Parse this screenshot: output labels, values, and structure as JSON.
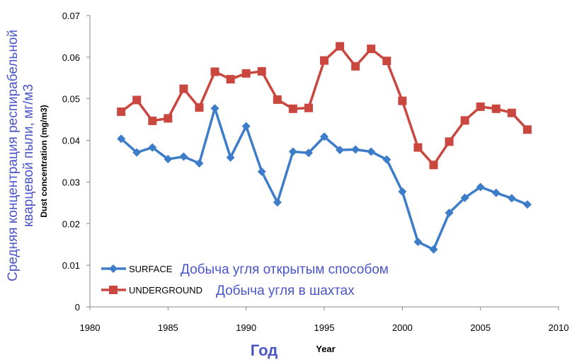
{
  "chart_data": {
    "type": "line",
    "xlabel": "Year",
    "xlabel_ru": "Год",
    "ylabel": "Dust concentration (mg/m3)",
    "ylabel_ru": "Средняя концентрация респирабельной кварцевой пыли, мг/м3",
    "xlim": [
      1980,
      2010
    ],
    "ylim": [
      0,
      0.07
    ],
    "x_ticks": [
      "1980",
      "1985",
      "1990",
      "1995",
      "2000",
      "2005",
      "2010"
    ],
    "y_ticks": [
      "0",
      "0.01",
      "0.02",
      "0.03",
      "0.04",
      "0.05",
      "0.06",
      "0.07"
    ],
    "grid": false,
    "legend_placement": "bottom-left",
    "x": [
      1982,
      1983,
      1984,
      1985,
      1986,
      1987,
      1988,
      1989,
      1990,
      1991,
      1992,
      1993,
      1994,
      1995,
      1996,
      1997,
      1998,
      1999,
      2000,
      2001,
      2002,
      2003,
      2004,
      2005,
      2006,
      2007,
      2008
    ],
    "series": [
      {
        "name": "SURFACE",
        "name_ru": "Добыча угля открытым способом",
        "color": "#3d7cc9",
        "marker": "diamond",
        "values": [
          0.0404,
          0.0371,
          0.0383,
          0.0355,
          0.0361,
          0.0345,
          0.0477,
          0.0359,
          0.0434,
          0.0325,
          0.0251,
          0.0373,
          0.037,
          0.0409,
          0.0377,
          0.0378,
          0.0373,
          0.0354,
          0.0277,
          0.0156,
          0.0138,
          0.0226,
          0.0262,
          0.0288,
          0.0274,
          0.0261,
          0.0246
        ]
      },
      {
        "name": "UNDERGROUND",
        "name_ru": "Добыча угля в шахтах",
        "color": "#c9473f",
        "marker": "square",
        "values": [
          0.0469,
          0.0497,
          0.0447,
          0.0453,
          0.0524,
          0.0479,
          0.0565,
          0.0547,
          0.0561,
          0.0566,
          0.0498,
          0.0476,
          0.0478,
          0.0592,
          0.0626,
          0.0578,
          0.062,
          0.0591,
          0.0495,
          0.0383,
          0.0341,
          0.0397,
          0.0448,
          0.0481,
          0.0476,
          0.0466,
          0.0426
        ]
      }
    ]
  }
}
